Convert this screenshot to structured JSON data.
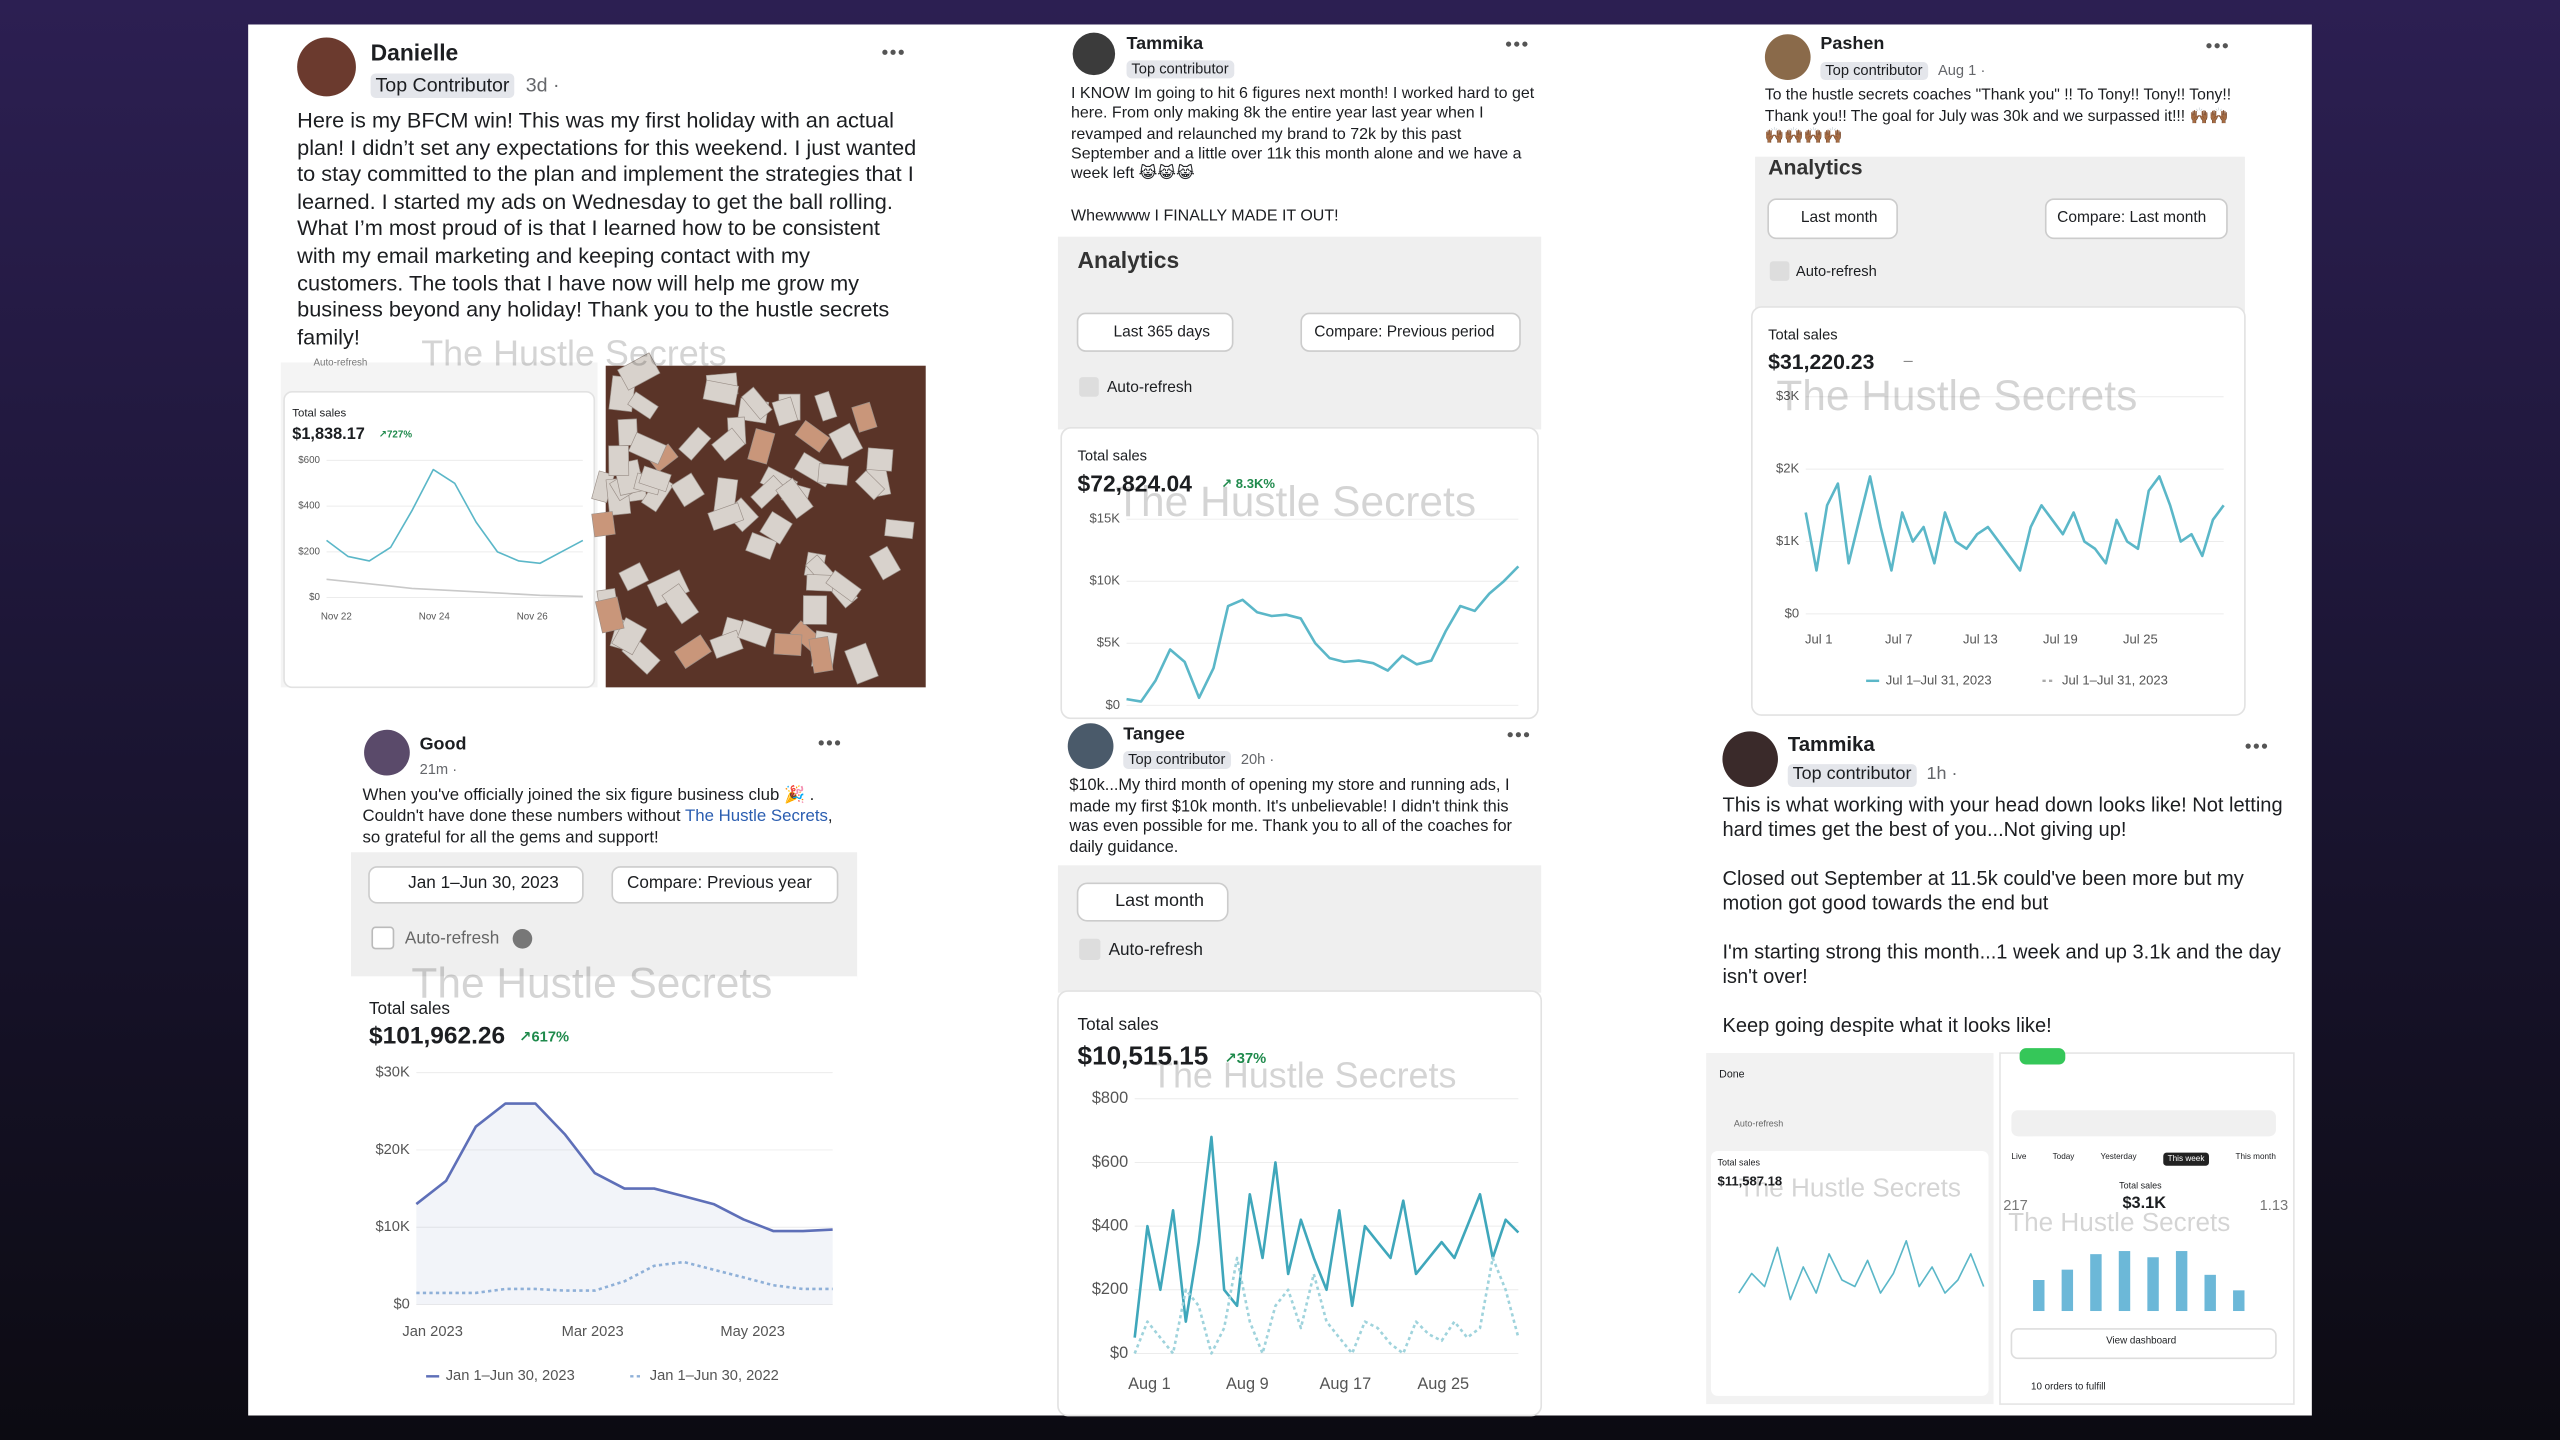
{
  "watermark": "The Hustle Secrets",
  "posts": [
    {
      "author": "Danielle",
      "badge": "Top Contributor",
      "time": "3d ·",
      "text": "Here is my BFCM win! This was my first holiday with an actual  plan! I didn’t set any expectations for this weekend. I just wanted to stay committed to the plan and implement the strategies that I learned. I started my ads on Wednesday to get the ball rolling. What I’m most proud of is that I learned how to be consistent with my email marketing and keeping contact with my customers. The tools that I have now will help me grow my business beyond any holiday! Thank you to the hustle secrets family!",
      "screenshot": {
        "auto_refresh": "Auto-refresh",
        "total_label": "Total sales",
        "total": "$1,838.17",
        "change": "↗727%",
        "chart": {
          "type": "line",
          "ylim": [
            0,
            600
          ],
          "yticks": [
            {
              "value": 600,
              "label": "$600"
            },
            {
              "value": 400,
              "label": "$400"
            },
            {
              "value": 200,
              "label": "$200"
            },
            {
              "value": 0,
              "label": "$0"
            }
          ],
          "x_labels": [
            "Nov 22",
            "Nov 24",
            "Nov 26"
          ],
          "series": [
            {
              "color": "#5bb7c8",
              "values": [
                250,
                180,
                160,
                220,
                380,
                560,
                500,
                330,
                200,
                160,
                150,
                200,
                250
              ]
            },
            {
              "color": "#c9c9c9",
              "values": [
                80,
                70,
                60,
                50,
                40,
                35,
                30,
                25,
                20,
                15,
                10,
                8,
                5
              ]
            }
          ]
        }
      }
    },
    {
      "author": "Tammika",
      "badge": "Top contributor",
      "text": "I KNOW Im going to hit 6 figures next month! I worked hard to get here. From only making 8k the entire year last year when I revamped and relaunched my brand to 72k by this past September and a little over 11k this month alone and we have a week left 😹😹😹",
      "text2": "Whewwww I FINALLY MADE IT OUT!",
      "screenshot": {
        "title": "Analytics",
        "date_range": "Last 365 days",
        "compare": "Compare: Previous period",
        "auto_refresh": "Auto-refresh",
        "total_label": "Total sales",
        "total": "$72,824.04",
        "change": "↗ 8.3K%",
        "chart": {
          "type": "line",
          "ylim": [
            0,
            15000
          ],
          "yticks": [
            {
              "value": 15000,
              "label": "$15K"
            },
            {
              "value": 10000,
              "label": "$10K"
            },
            {
              "value": 5000,
              "label": "$5K"
            },
            {
              "value": 0,
              "label": "$0"
            }
          ],
          "series": [
            {
              "color": "#5bb7c8",
              "values": [
                500,
                300,
                2000,
                4500,
                3500,
                600,
                3000,
                8000,
                8500,
                7500,
                7200,
                7300,
                7000,
                5000,
                3800,
                3500,
                3600,
                3400,
                2800,
                4000,
                3300,
                3600,
                6000,
                8000,
                7600,
                9000,
                10000,
                11200
              ]
            }
          ]
        }
      }
    },
    {
      "author": "Pashen",
      "badge": "Top contributor",
      "time": "Aug 1 ·",
      "text": "To the hustle secrets coaches \"Thank you\" !! To Tony!! Tony!! Tony!! Thank you!! The goal for July was 30k and we surpassed it!!! 🙌🏾🙌🏾🙌🏾🙌🏾🙌🏾🙌🏾",
      "screenshot": {
        "title": "Analytics",
        "date_range": "Last month",
        "compare": "Compare: Last month",
        "auto_refresh": "Auto-refresh",
        "total_label": "Total sales",
        "total": "$31,220.23",
        "change": "–",
        "chart": {
          "type": "line",
          "ylim": [
            0,
            3000
          ],
          "yticks": [
            {
              "value": 3000,
              "label": "$3K"
            },
            {
              "value": 2000,
              "label": "$2K"
            },
            {
              "value": 1000,
              "label": "$1K"
            },
            {
              "value": 0,
              "label": "$0"
            }
          ],
          "x_labels": [
            "Jul 1",
            "Jul 7",
            "Jul 13",
            "Jul 19",
            "Jul 25"
          ],
          "legend": [
            "Jul 1–Jul 31, 2023",
            "Jul 1–Jul 31, 2023"
          ],
          "series": [
            {
              "color": "#5bb7c8",
              "values": [
                1400,
                600,
                1500,
                1800,
                700,
                1300,
                1900,
                1200,
                600,
                1400,
                1000,
                1200,
                700,
                1400,
                1000,
                900,
                1100,
                1200,
                1000,
                800,
                600,
                1200,
                1500,
                1300,
                1100,
                1400,
                1000,
                900,
                700,
                1300,
                1000,
                900,
                1700,
                1900,
                1500,
                1000,
                1100,
                800,
                1300,
                1500
              ]
            }
          ]
        }
      }
    },
    {
      "author": "Good",
      "time": "21m ·",
      "text_parts": [
        "When you've officially joined the six figure business club 🎉 . Couldn't have done these numbers without ",
        "The Hustle Secrets",
        ", so grateful for all the gems and support!"
      ],
      "screenshot": {
        "date_range": "Jan 1–Jun 30, 2023",
        "compare": "Compare: Previous year",
        "auto_refresh": "Auto-refresh",
        "total_label": "Total sales",
        "total": "$101,962.26",
        "change": "↗617%",
        "chart": {
          "type": "line",
          "ylim": [
            0,
            30000
          ],
          "yticks": [
            {
              "value": 30000,
              "label": "$30K"
            },
            {
              "value": 20000,
              "label": "$20K"
            },
            {
              "value": 10000,
              "label": "$10K"
            },
            {
              "value": 0,
              "label": "$0"
            }
          ],
          "x_labels": [
            "Jan 2023",
            "Mar 2023",
            "May 2023"
          ],
          "series": [
            {
              "name": "Jan 1–Jun 30, 2023",
              "color": "#5e6fb8",
              "area": true,
              "values": [
                13000,
                16000,
                23000,
                26000,
                26000,
                22000,
                17000,
                15000,
                15000,
                14000,
                13000,
                11000,
                9500,
                9500,
                9700
              ]
            },
            {
              "name": "Jan 1–Jun 30, 2022",
              "color": "#8fb0d8",
              "dashed": true,
              "values": [
                1500,
                1500,
                1500,
                2000,
                2000,
                1800,
                1800,
                3000,
                5000,
                5500,
                4500,
                3500,
                2500,
                2000,
                2000
              ]
            }
          ]
        }
      }
    },
    {
      "author": "Tangee",
      "badge": "Top contributor",
      "time": "20h ·",
      "text": "$10k...My third month of opening my store and running ads, I made my first $10k month. It's unbelievable! I didn't think this was even possible for me.  Thank you to all of the coaches for daily guidance.",
      "screenshot": {
        "date_range": "Last month",
        "auto_refresh": "Auto-refresh",
        "total_label": "Total sales",
        "total": "$10,515.15",
        "change": "↗37%",
        "chart": {
          "type": "line",
          "ylim": [
            0,
            800
          ],
          "yticks": [
            {
              "value": 800,
              "label": "$800"
            },
            {
              "value": 600,
              "label": "$600"
            },
            {
              "value": 400,
              "label": "$400"
            },
            {
              "value": 200,
              "label": "$200"
            },
            {
              "value": 0,
              "label": "$0"
            }
          ],
          "x_labels": [
            "Aug 1",
            "Aug 9",
            "Aug 17",
            "Aug 25"
          ],
          "series": [
            {
              "color": "#3fa7bb",
              "values": [
                50,
                400,
                200,
                450,
                100,
                350,
                680,
                200,
                150,
                500,
                300,
                600,
                250,
                420,
                300,
                200,
                450,
                150,
                400,
                350,
                300,
                480,
                250,
                300,
                350,
                300,
                400,
                500,
                300,
                420,
                380
              ]
            },
            {
              "color": "#9fd3dc",
              "dashed": true,
              "values": [
                0,
                100,
                50,
                0,
                200,
                150,
                0,
                80,
                300,
                100,
                0,
                150,
                200,
                80,
                250,
                100,
                50,
                0,
                100,
                80,
                30,
                0,
                100,
                60,
                40,
                100,
                50,
                80,
                300,
                200,
                50
              ]
            }
          ]
        }
      }
    },
    {
      "author": "Tammika",
      "badge": "Top contributor",
      "time": "1h ·",
      "paragraphs": [
        "This is what working with your head down looks like! Not letting hard times get the best of you...Not giving up!",
        "Closed out September at 11.5k could've been more but my motion got good towards the end but",
        "I'm starting strong this month...1 week and up 3.1k and the day isn't over!",
        "Keep going despite what it looks like!"
      ],
      "screenshots": {
        "left": {
          "done": "Done",
          "auto_refresh": "Auto-refresh",
          "total_label": "Total sales",
          "total": "$11,587.18",
          "chart": {
            "type": "line",
            "ylim": [
              -500,
              1500
            ],
            "series": [
              {
                "color": "#5bb7c8",
                "values": [
                  200,
                  500,
                  300,
                  900,
                  100,
                  600,
                  200,
                  800,
                  400,
                  300,
                  700,
                  200,
                  500,
                  1000,
                  300,
                  600,
                  200,
                  400,
                  800,
                  300
                ]
              }
            ]
          }
        },
        "right": {
          "tabs": [
            "Live",
            "Today",
            "Yesterday",
            "This week",
            "This month"
          ],
          "stat_left": "217",
          "total_label": "Total sales",
          "total": "$3.1K",
          "stat_right": "1.13",
          "chart": {
            "type": "bar",
            "ylim": [
              0,
              60
            ],
            "color": "#6cb8d8",
            "values": [
              30,
              40,
              55,
              58,
              52,
              58,
              35,
              20
            ]
          },
          "button": "View dashboard",
          "orders": "10 orders to fulfill"
        }
      }
    }
  ]
}
